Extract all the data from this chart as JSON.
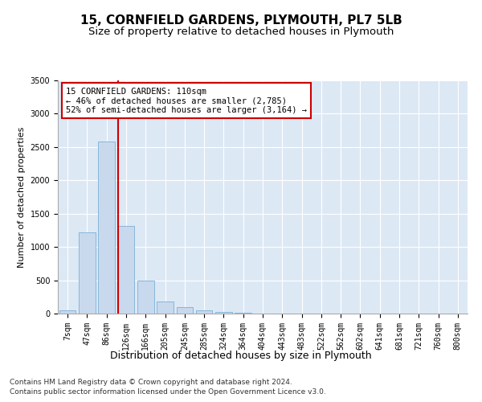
{
  "title": "15, CORNFIELD GARDENS, PLYMOUTH, PL7 5LB",
  "subtitle": "Size of property relative to detached houses in Plymouth",
  "xlabel": "Distribution of detached houses by size in Plymouth",
  "ylabel": "Number of detached properties",
  "categories": [
    "7sqm",
    "47sqm",
    "86sqm",
    "126sqm",
    "166sqm",
    "205sqm",
    "245sqm",
    "285sqm",
    "324sqm",
    "364sqm",
    "404sqm",
    "443sqm",
    "483sqm",
    "522sqm",
    "562sqm",
    "602sqm",
    "641sqm",
    "681sqm",
    "721sqm",
    "760sqm",
    "800sqm"
  ],
  "values": [
    50,
    1220,
    2580,
    1320,
    490,
    185,
    100,
    50,
    25,
    10,
    5,
    3,
    2,
    1,
    0,
    0,
    0,
    0,
    0,
    0,
    0
  ],
  "bar_color": "#c8d9ee",
  "bar_edge_color": "#7aafd4",
  "vline_color": "#cc0000",
  "annotation_text": "15 CORNFIELD GARDENS: 110sqm\n← 46% of detached houses are smaller (2,785)\n52% of semi-detached houses are larger (3,164) →",
  "annotation_box_color": "#ffffff",
  "annotation_box_edge_color": "#cc0000",
  "ylim": [
    0,
    3500
  ],
  "yticks": [
    0,
    500,
    1000,
    1500,
    2000,
    2500,
    3000,
    3500
  ],
  "plot_bg_color": "#dde8f5",
  "footer_line1": "Contains HM Land Registry data © Crown copyright and database right 2024.",
  "footer_line2": "Contains public sector information licensed under the Open Government Licence v3.0.",
  "title_fontsize": 11,
  "subtitle_fontsize": 9.5,
  "xlabel_fontsize": 9,
  "ylabel_fontsize": 8,
  "tick_fontsize": 7,
  "footer_fontsize": 6.5
}
